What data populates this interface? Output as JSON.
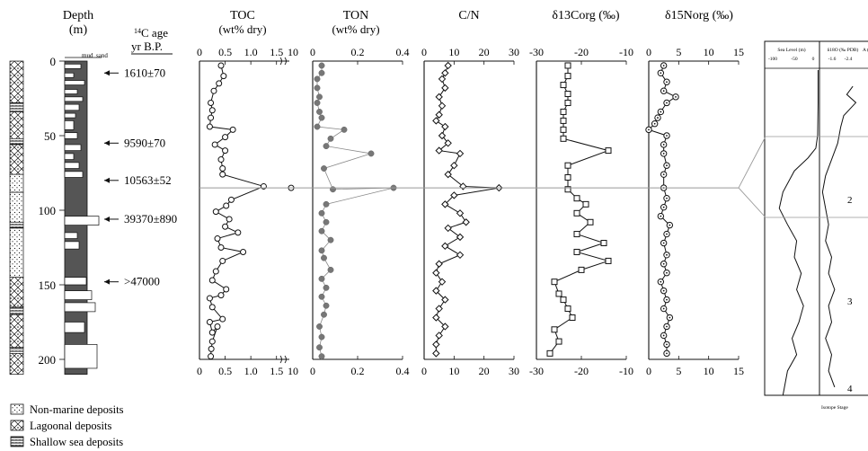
{
  "figure": {
    "depth_axis": {
      "title_line1": "Depth",
      "title_line2": "(m)",
      "ticks": [
        "0",
        "50",
        "100",
        "150",
        "200"
      ]
    },
    "column_labels": {
      "mud": "mud",
      "sand": "sand"
    },
    "c14": {
      "title_line1": "14",
      "title_line1_rest": "C age",
      "title_line2": "yr B.P.",
      "ages": [
        "1610±70",
        "9590±70",
        "10563±52",
        "39370±890",
        ">47000"
      ]
    },
    "legend": [
      "Non-marine deposits",
      "Lagoonal deposits",
      "Shallow sea deposits"
    ],
    "colors": {
      "ink": "#111111",
      "ton_marker": "#777777",
      "ref_line": "#999999",
      "sand_fill": "#ffffff",
      "mud_fill": "#555555"
    },
    "reference_depth": 85,
    "right_panel": {
      "sea_level_title": "Sea Level (m)",
      "sea_level_ticks": [
        "-100",
        "-50",
        "0"
      ],
      "d18o_title": "δ18O (‰ PDB)",
      "d18o_ticks": [
        "-1.6",
        "-2.4"
      ],
      "age_title": "A (k",
      "isotope_stages": [
        "2",
        "3",
        "4"
      ],
      "isotope_stage_label": "Isotope Stage"
    }
  },
  "chart_data": [
    {
      "type": "line",
      "title": "TOC",
      "subtitle": "(wt% dry)",
      "xlim": [
        0,
        1.75
      ],
      "xticks": [
        "0",
        "0.5",
        "1.0",
        "1.5",
        "10"
      ],
      "ylim": [
        0,
        200
      ],
      "y_label": "Depth (m)",
      "marker": "open-circle",
      "points": [
        [
          0.42,
          3
        ],
        [
          0.47,
          10
        ],
        [
          0.38,
          15
        ],
        [
          0.28,
          20
        ],
        [
          0.22,
          28
        ],
        [
          0.25,
          33
        ],
        [
          0.22,
          38
        ],
        [
          0.2,
          44
        ],
        [
          0.65,
          46
        ],
        [
          0.5,
          51
        ],
        [
          0.3,
          56
        ],
        [
          0.5,
          60
        ],
        [
          0.42,
          66
        ],
        [
          0.45,
          72
        ],
        [
          0.45,
          76
        ],
        [
          1.25,
          84
        ],
        [
          0.62,
          93
        ],
        [
          0.52,
          97
        ],
        [
          0.32,
          101
        ],
        [
          0.58,
          106
        ],
        [
          0.5,
          111
        ],
        [
          0.75,
          115
        ],
        [
          0.35,
          119
        ],
        [
          0.42,
          125
        ],
        [
          0.85,
          128
        ],
        [
          0.45,
          134
        ],
        [
          0.32,
          141
        ],
        [
          0.25,
          147
        ],
        [
          0.52,
          153
        ],
        [
          0.42,
          157
        ],
        [
          0.2,
          159
        ],
        [
          0.25,
          165
        ],
        [
          0.45,
          173
        ],
        [
          0.2,
          175
        ],
        [
          0.25,
          182
        ],
        [
          0.35,
          178
        ],
        [
          0.25,
          188
        ],
        [
          0.23,
          193
        ],
        [
          0.22,
          198
        ]
      ],
      "annotation": {
        "value": 10,
        "depth": 85,
        "note": "off-scale point"
      }
    },
    {
      "type": "line",
      "title": "TON",
      "subtitle": "(wt% dry)",
      "xlim": [
        0,
        0.4
      ],
      "xticks": [
        "0",
        "0.2",
        "0.4"
      ],
      "ylim": [
        0,
        200
      ],
      "marker": "filled-circle",
      "points": [
        [
          0.04,
          3
        ],
        [
          0.04,
          8
        ],
        [
          0.02,
          12
        ],
        [
          0.02,
          18
        ],
        [
          0.03,
          24
        ],
        [
          0.02,
          28
        ],
        [
          0.03,
          34
        ],
        [
          0.04,
          38
        ],
        [
          0.02,
          44
        ],
        [
          0.14,
          46
        ],
        [
          0.08,
          52
        ],
        [
          0.06,
          57
        ],
        [
          0.26,
          62
        ],
        [
          0.05,
          72
        ],
        [
          0.09,
          86
        ],
        [
          0.36,
          85
        ],
        [
          0.06,
          96
        ],
        [
          0.04,
          102
        ],
        [
          0.06,
          108
        ],
        [
          0.04,
          114
        ],
        [
          0.08,
          120
        ],
        [
          0.04,
          127
        ],
        [
          0.05,
          132
        ],
        [
          0.08,
          140
        ],
        [
          0.04,
          146
        ],
        [
          0.06,
          152
        ],
        [
          0.04,
          158
        ],
        [
          0.06,
          164
        ],
        [
          0.05,
          170
        ],
        [
          0.03,
          178
        ],
        [
          0.04,
          185
        ],
        [
          0.03,
          192
        ],
        [
          0.04,
          198
        ]
      ]
    },
    {
      "type": "line",
      "title": "C/N",
      "subtitle": "",
      "xlim": [
        0,
        30
      ],
      "xticks": [
        "0",
        "10",
        "20",
        "30"
      ],
      "ylim": [
        0,
        200
      ],
      "marker": "open-diamond",
      "points": [
        [
          8,
          3
        ],
        [
          7,
          8
        ],
        [
          6,
          12
        ],
        [
          7,
          18
        ],
        [
          5,
          24
        ],
        [
          6,
          30
        ],
        [
          5,
          36
        ],
        [
          4,
          40
        ],
        [
          7,
          44
        ],
        [
          6,
          50
        ],
        [
          8,
          55
        ],
        [
          5,
          60
        ],
        [
          12,
          62
        ],
        [
          10,
          70
        ],
        [
          8,
          76
        ],
        [
          13,
          84
        ],
        [
          25,
          85
        ],
        [
          10,
          90
        ],
        [
          7,
          96
        ],
        [
          12,
          102
        ],
        [
          14,
          108
        ],
        [
          8,
          112
        ],
        [
          12,
          118
        ],
        [
          7,
          124
        ],
        [
          12,
          130
        ],
        [
          5,
          136
        ],
        [
          4,
          142
        ],
        [
          6,
          148
        ],
        [
          4,
          154
        ],
        [
          7,
          160
        ],
        [
          5,
          166
        ],
        [
          4,
          172
        ],
        [
          7,
          178
        ],
        [
          5,
          184
        ],
        [
          4,
          190
        ],
        [
          4,
          196
        ]
      ]
    },
    {
      "type": "line",
      "title": "δ13Corg (‰)",
      "subtitle": "",
      "xlim": [
        -30,
        -10
      ],
      "xticks": [
        "-30",
        "-20",
        "-10"
      ],
      "ylim": [
        0,
        200
      ],
      "marker": "open-square",
      "points": [
        [
          -23,
          3
        ],
        [
          -23,
          10
        ],
        [
          -24,
          16
        ],
        [
          -23,
          22
        ],
        [
          -23,
          28
        ],
        [
          -24,
          34
        ],
        [
          -24,
          40
        ],
        [
          -24,
          46
        ],
        [
          -24,
          52
        ],
        [
          -14,
          60
        ],
        [
          -23,
          70
        ],
        [
          -23,
          78
        ],
        [
          -23,
          86
        ],
        [
          -21,
          92
        ],
        [
          -19,
          96
        ],
        [
          -21,
          102
        ],
        [
          -18,
          108
        ],
        [
          -21,
          116
        ],
        [
          -15,
          122
        ],
        [
          -21,
          128
        ],
        [
          -14,
          134
        ],
        [
          -20,
          140
        ],
        [
          -26,
          148
        ],
        [
          -25,
          156
        ],
        [
          -24,
          160
        ],
        [
          -23,
          166
        ],
        [
          -22,
          172
        ],
        [
          -26,
          180
        ],
        [
          -25,
          188
        ],
        [
          -27,
          196
        ]
      ]
    },
    {
      "type": "line",
      "title": "δ15Norg (‰)",
      "subtitle": "",
      "xlim": [
        0,
        15
      ],
      "xticks": [
        "0",
        "5",
        "10",
        "15"
      ],
      "ylim": [
        0,
        200
      ],
      "marker": "dotted-circle",
      "points": [
        [
          2.5,
          3
        ],
        [
          2,
          8
        ],
        [
          3,
          14
        ],
        [
          2.5,
          20
        ],
        [
          4.5,
          24
        ],
        [
          3,
          28
        ],
        [
          2,
          34
        ],
        [
          1.5,
          38
        ],
        [
          1,
          42
        ],
        [
          0,
          46
        ],
        [
          3,
          50
        ],
        [
          2.5,
          56
        ],
        [
          2.5,
          62
        ],
        [
          3,
          70
        ],
        [
          2.5,
          76
        ],
        [
          2.5,
          85
        ],
        [
          3,
          92
        ],
        [
          2.5,
          98
        ],
        [
          2,
          104
        ],
        [
          3.5,
          110
        ],
        [
          3,
          116
        ],
        [
          2.5,
          122
        ],
        [
          3,
          130
        ],
        [
          2.5,
          136
        ],
        [
          3,
          142
        ],
        [
          2,
          148
        ],
        [
          2.5,
          154
        ],
        [
          3,
          160
        ],
        [
          2.5,
          166
        ],
        [
          3.5,
          172
        ],
        [
          3,
          178
        ],
        [
          2.5,
          184
        ],
        [
          3,
          190
        ],
        [
          3,
          196
        ]
      ]
    },
    {
      "type": "line",
      "title": "Sea Level (m)",
      "subtitle": "",
      "xlim": [
        -120,
        0
      ],
      "xticks": [
        "-100",
        "-50",
        "0"
      ],
      "series_note": "sea level curve vs depth (right panel)",
      "points": [
        [
          -3,
          0
        ],
        [
          -3,
          20
        ],
        [
          -4,
          40
        ],
        [
          -8,
          48
        ],
        [
          -25,
          54
        ],
        [
          -55,
          62
        ],
        [
          -80,
          75
        ],
        [
          -88,
          85
        ],
        [
          -70,
          95
        ],
        [
          -50,
          105
        ],
        [
          -55,
          115
        ],
        [
          -40,
          125
        ],
        [
          -50,
          135
        ],
        [
          -35,
          145
        ],
        [
          -45,
          155
        ],
        [
          -60,
          165
        ],
        [
          -50,
          175
        ],
        [
          -70,
          185
        ],
        [
          -80,
          200
        ]
      ]
    },
    {
      "type": "line",
      "title": "δ18O (‰ PDB)",
      "subtitle": "",
      "xlim": [
        -1.2,
        -2.8
      ],
      "xticks": [
        "-1.6",
        "-2.4"
      ],
      "points": [
        [
          -2.3,
          10
        ],
        [
          -2.1,
          15
        ],
        [
          -2.4,
          20
        ],
        [
          -2.0,
          28
        ],
        [
          -1.9,
          35
        ],
        [
          -1.8,
          45
        ],
        [
          -1.6,
          55
        ],
        [
          -1.4,
          65
        ],
        [
          -1.3,
          75
        ],
        [
          -1.4,
          85
        ],
        [
          -1.5,
          95
        ],
        [
          -1.4,
          105
        ],
        [
          -1.6,
          115
        ],
        [
          -1.5,
          125
        ],
        [
          -1.7,
          135
        ],
        [
          -1.5,
          145
        ],
        [
          -1.6,
          155
        ],
        [
          -1.4,
          165
        ],
        [
          -1.6,
          175
        ],
        [
          -1.5,
          185
        ],
        [
          -1.7,
          195
        ]
      ]
    }
  ]
}
